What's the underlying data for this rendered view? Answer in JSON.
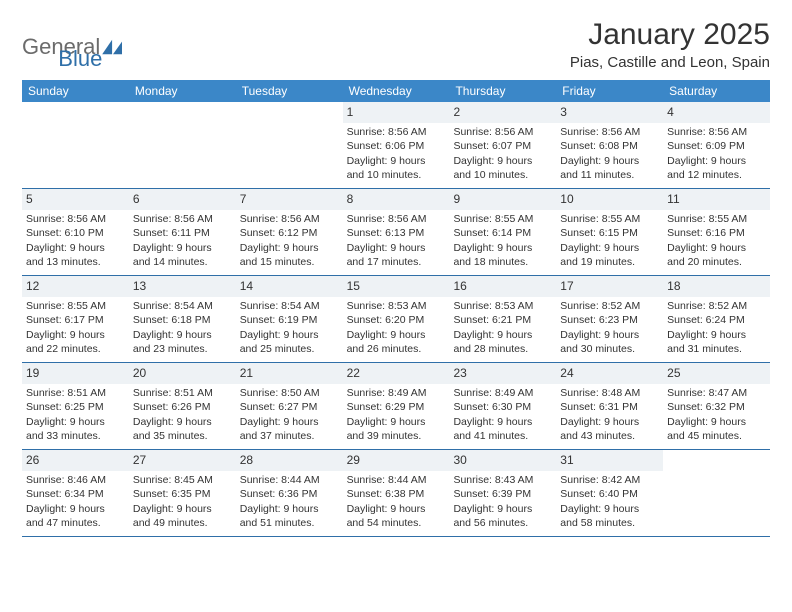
{
  "brand": {
    "part1": "General",
    "part2": "Blue"
  },
  "title": "January 2025",
  "location": "Pias, Castille and Leon, Spain",
  "colors": {
    "header_bg": "#3b87c8",
    "header_text": "#ffffff",
    "row_border": "#2f6fa8",
    "shaded_bg": "#eef2f5",
    "text": "#333333",
    "brand_gray": "#6b6b6b",
    "brand_blue": "#2f6fa8"
  },
  "day_names": [
    "Sunday",
    "Monday",
    "Tuesday",
    "Wednesday",
    "Thursday",
    "Friday",
    "Saturday"
  ],
  "weeks": [
    [
      {
        "blank": true
      },
      {
        "blank": true
      },
      {
        "blank": true
      },
      {
        "num": "1",
        "sunrise": "Sunrise: 8:56 AM",
        "sunset": "Sunset: 6:06 PM",
        "daylight1": "Daylight: 9 hours",
        "daylight2": "and 10 minutes."
      },
      {
        "num": "2",
        "sunrise": "Sunrise: 8:56 AM",
        "sunset": "Sunset: 6:07 PM",
        "daylight1": "Daylight: 9 hours",
        "daylight2": "and 10 minutes."
      },
      {
        "num": "3",
        "sunrise": "Sunrise: 8:56 AM",
        "sunset": "Sunset: 6:08 PM",
        "daylight1": "Daylight: 9 hours",
        "daylight2": "and 11 minutes."
      },
      {
        "num": "4",
        "sunrise": "Sunrise: 8:56 AM",
        "sunset": "Sunset: 6:09 PM",
        "daylight1": "Daylight: 9 hours",
        "daylight2": "and 12 minutes."
      }
    ],
    [
      {
        "num": "5",
        "sunrise": "Sunrise: 8:56 AM",
        "sunset": "Sunset: 6:10 PM",
        "daylight1": "Daylight: 9 hours",
        "daylight2": "and 13 minutes."
      },
      {
        "num": "6",
        "sunrise": "Sunrise: 8:56 AM",
        "sunset": "Sunset: 6:11 PM",
        "daylight1": "Daylight: 9 hours",
        "daylight2": "and 14 minutes."
      },
      {
        "num": "7",
        "sunrise": "Sunrise: 8:56 AM",
        "sunset": "Sunset: 6:12 PM",
        "daylight1": "Daylight: 9 hours",
        "daylight2": "and 15 minutes."
      },
      {
        "num": "8",
        "sunrise": "Sunrise: 8:56 AM",
        "sunset": "Sunset: 6:13 PM",
        "daylight1": "Daylight: 9 hours",
        "daylight2": "and 17 minutes."
      },
      {
        "num": "9",
        "sunrise": "Sunrise: 8:55 AM",
        "sunset": "Sunset: 6:14 PM",
        "daylight1": "Daylight: 9 hours",
        "daylight2": "and 18 minutes."
      },
      {
        "num": "10",
        "sunrise": "Sunrise: 8:55 AM",
        "sunset": "Sunset: 6:15 PM",
        "daylight1": "Daylight: 9 hours",
        "daylight2": "and 19 minutes."
      },
      {
        "num": "11",
        "sunrise": "Sunrise: 8:55 AM",
        "sunset": "Sunset: 6:16 PM",
        "daylight1": "Daylight: 9 hours",
        "daylight2": "and 20 minutes."
      }
    ],
    [
      {
        "num": "12",
        "sunrise": "Sunrise: 8:55 AM",
        "sunset": "Sunset: 6:17 PM",
        "daylight1": "Daylight: 9 hours",
        "daylight2": "and 22 minutes."
      },
      {
        "num": "13",
        "sunrise": "Sunrise: 8:54 AM",
        "sunset": "Sunset: 6:18 PM",
        "daylight1": "Daylight: 9 hours",
        "daylight2": "and 23 minutes."
      },
      {
        "num": "14",
        "sunrise": "Sunrise: 8:54 AM",
        "sunset": "Sunset: 6:19 PM",
        "daylight1": "Daylight: 9 hours",
        "daylight2": "and 25 minutes."
      },
      {
        "num": "15",
        "sunrise": "Sunrise: 8:53 AM",
        "sunset": "Sunset: 6:20 PM",
        "daylight1": "Daylight: 9 hours",
        "daylight2": "and 26 minutes."
      },
      {
        "num": "16",
        "sunrise": "Sunrise: 8:53 AM",
        "sunset": "Sunset: 6:21 PM",
        "daylight1": "Daylight: 9 hours",
        "daylight2": "and 28 minutes."
      },
      {
        "num": "17",
        "sunrise": "Sunrise: 8:52 AM",
        "sunset": "Sunset: 6:23 PM",
        "daylight1": "Daylight: 9 hours",
        "daylight2": "and 30 minutes."
      },
      {
        "num": "18",
        "sunrise": "Sunrise: 8:52 AM",
        "sunset": "Sunset: 6:24 PM",
        "daylight1": "Daylight: 9 hours",
        "daylight2": "and 31 minutes."
      }
    ],
    [
      {
        "num": "19",
        "sunrise": "Sunrise: 8:51 AM",
        "sunset": "Sunset: 6:25 PM",
        "daylight1": "Daylight: 9 hours",
        "daylight2": "and 33 minutes."
      },
      {
        "num": "20",
        "sunrise": "Sunrise: 8:51 AM",
        "sunset": "Sunset: 6:26 PM",
        "daylight1": "Daylight: 9 hours",
        "daylight2": "and 35 minutes."
      },
      {
        "num": "21",
        "sunrise": "Sunrise: 8:50 AM",
        "sunset": "Sunset: 6:27 PM",
        "daylight1": "Daylight: 9 hours",
        "daylight2": "and 37 minutes."
      },
      {
        "num": "22",
        "sunrise": "Sunrise: 8:49 AM",
        "sunset": "Sunset: 6:29 PM",
        "daylight1": "Daylight: 9 hours",
        "daylight2": "and 39 minutes."
      },
      {
        "num": "23",
        "sunrise": "Sunrise: 8:49 AM",
        "sunset": "Sunset: 6:30 PM",
        "daylight1": "Daylight: 9 hours",
        "daylight2": "and 41 minutes."
      },
      {
        "num": "24",
        "sunrise": "Sunrise: 8:48 AM",
        "sunset": "Sunset: 6:31 PM",
        "daylight1": "Daylight: 9 hours",
        "daylight2": "and 43 minutes."
      },
      {
        "num": "25",
        "sunrise": "Sunrise: 8:47 AM",
        "sunset": "Sunset: 6:32 PM",
        "daylight1": "Daylight: 9 hours",
        "daylight2": "and 45 minutes."
      }
    ],
    [
      {
        "num": "26",
        "sunrise": "Sunrise: 8:46 AM",
        "sunset": "Sunset: 6:34 PM",
        "daylight1": "Daylight: 9 hours",
        "daylight2": "and 47 minutes."
      },
      {
        "num": "27",
        "sunrise": "Sunrise: 8:45 AM",
        "sunset": "Sunset: 6:35 PM",
        "daylight1": "Daylight: 9 hours",
        "daylight2": "and 49 minutes."
      },
      {
        "num": "28",
        "sunrise": "Sunrise: 8:44 AM",
        "sunset": "Sunset: 6:36 PM",
        "daylight1": "Daylight: 9 hours",
        "daylight2": "and 51 minutes."
      },
      {
        "num": "29",
        "sunrise": "Sunrise: 8:44 AM",
        "sunset": "Sunset: 6:38 PM",
        "daylight1": "Daylight: 9 hours",
        "daylight2": "and 54 minutes."
      },
      {
        "num": "30",
        "sunrise": "Sunrise: 8:43 AM",
        "sunset": "Sunset: 6:39 PM",
        "daylight1": "Daylight: 9 hours",
        "daylight2": "and 56 minutes."
      },
      {
        "num": "31",
        "sunrise": "Sunrise: 8:42 AM",
        "sunset": "Sunset: 6:40 PM",
        "daylight1": "Daylight: 9 hours",
        "daylight2": "and 58 minutes."
      },
      {
        "blank": true
      }
    ]
  ]
}
